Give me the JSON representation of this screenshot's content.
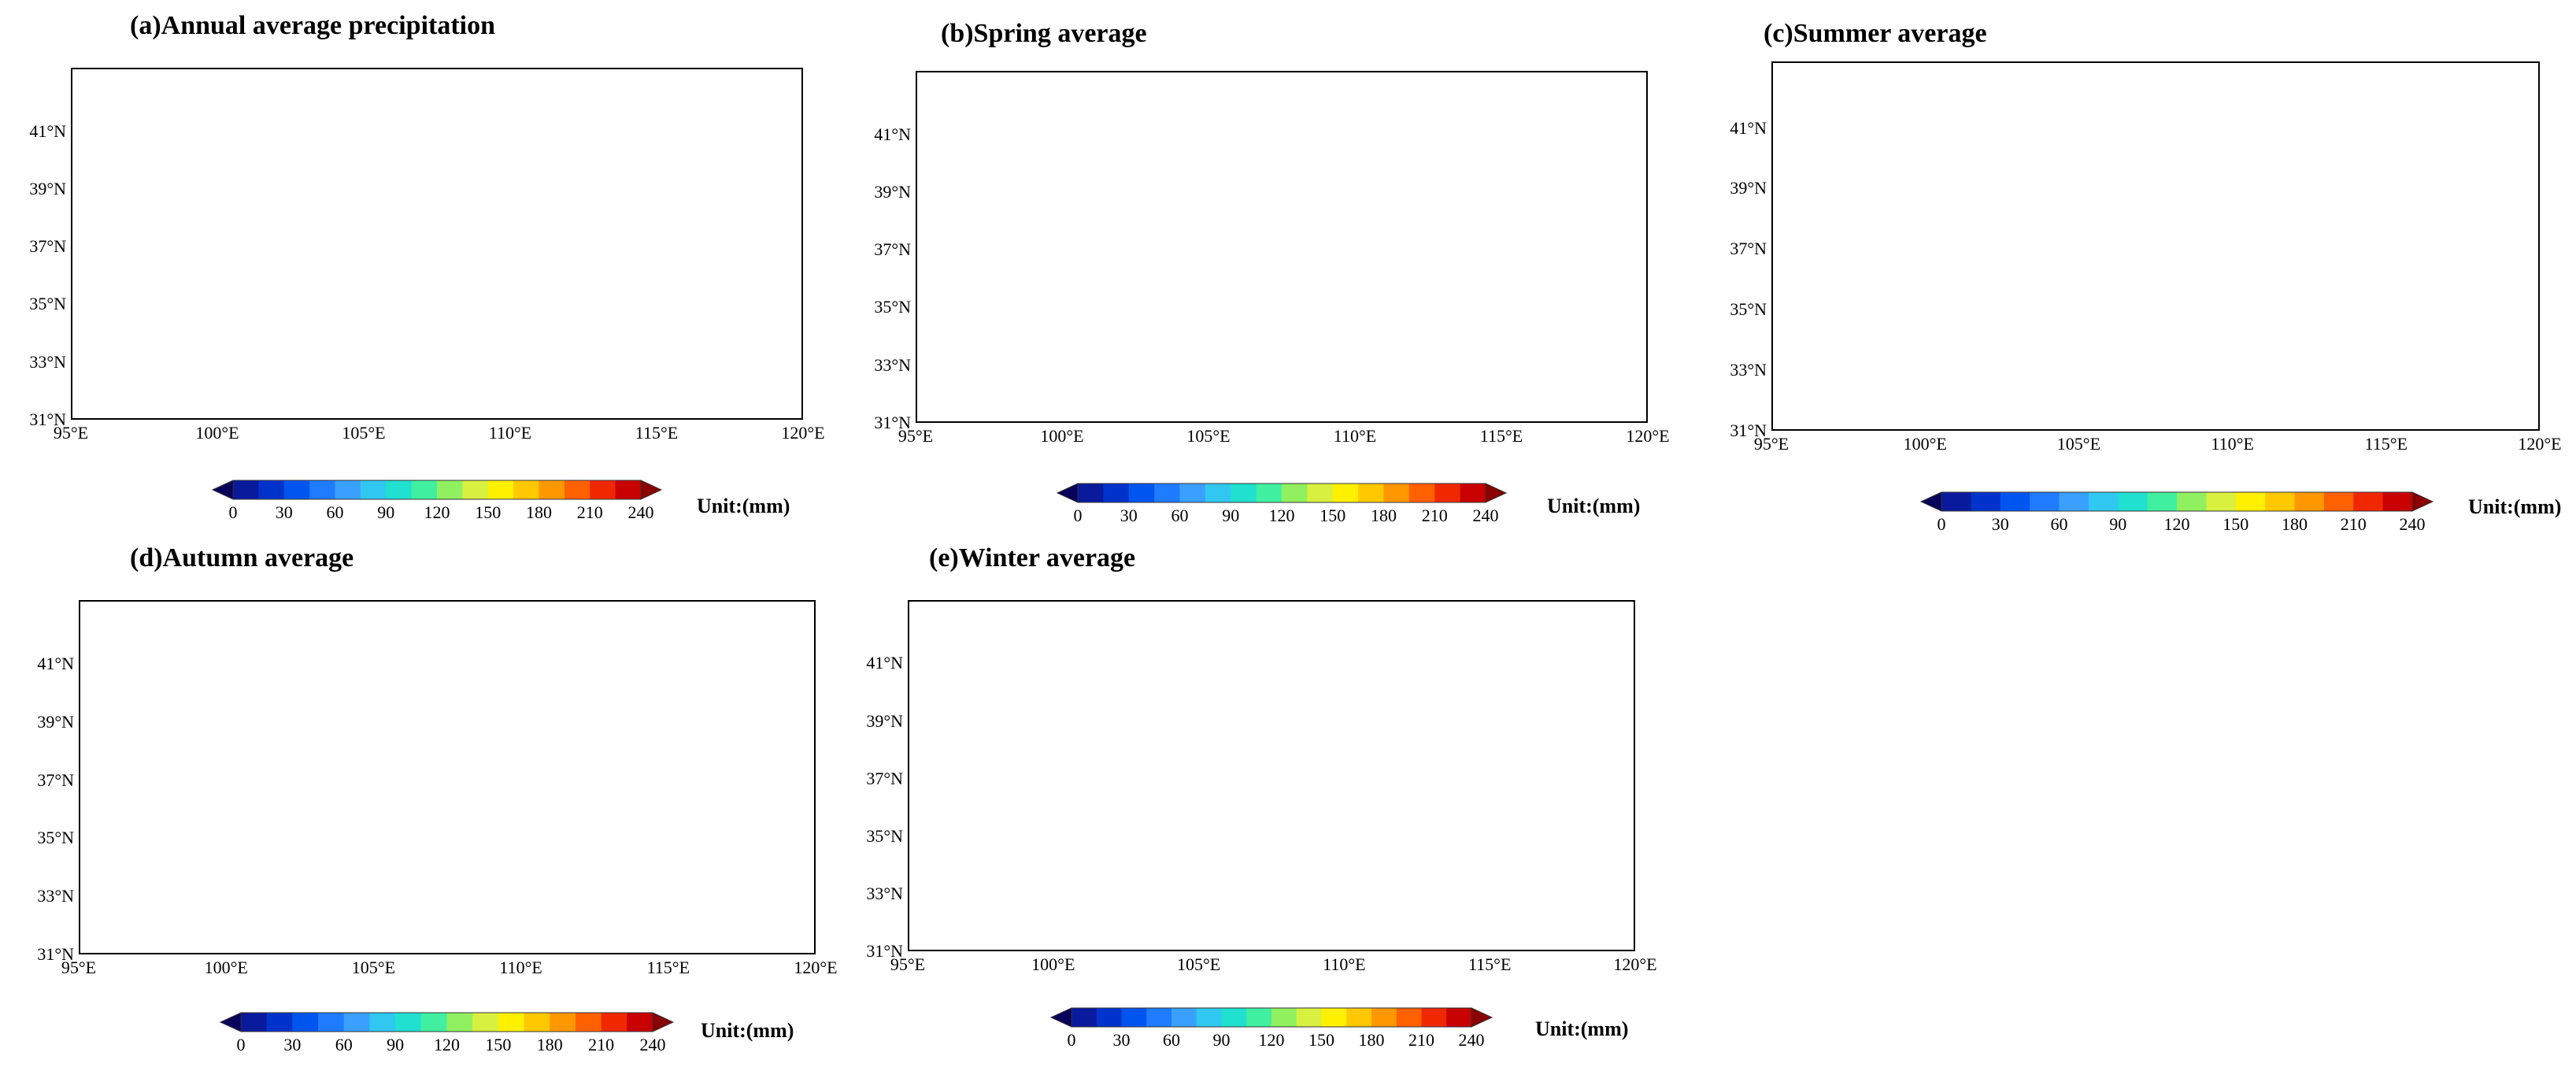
{
  "panels": [
    {
      "id": "a",
      "title": "(a)Annual average precipitation",
      "level": "annual"
    },
    {
      "id": "b",
      "title": "(b)Spring average",
      "level": "spring"
    },
    {
      "id": "c",
      "title": "(c)Summer average",
      "level": "summer"
    },
    {
      "id": "d",
      "title": "(d)Autumn average",
      "level": "autumn"
    },
    {
      "id": "e",
      "title": "(e)Winter average",
      "level": "winter"
    }
  ],
  "lat_ticks": [
    "41°N",
    "39°N",
    "37°N",
    "35°N",
    "33°N",
    "31°N"
  ],
  "lon_ticks": [
    "95°E",
    "100°E",
    "105°E",
    "110°E",
    "115°E",
    "120°E"
  ],
  "colorbar": {
    "ticks": [
      "0",
      "30",
      "60",
      "90",
      "120",
      "150",
      "180",
      "210",
      "240"
    ],
    "unit_label": "Unit:(mm)",
    "colors": [
      "#08005a",
      "#0a1a9c",
      "#0033cc",
      "#0055ee",
      "#1f7bff",
      "#3aa0ff",
      "#30c8f0",
      "#20e0d0",
      "#40f0a0",
      "#90f060",
      "#d8f040",
      "#fff000",
      "#ffc800",
      "#ff9800",
      "#ff6000",
      "#f02800",
      "#c80000",
      "#8a0000"
    ]
  }
}
